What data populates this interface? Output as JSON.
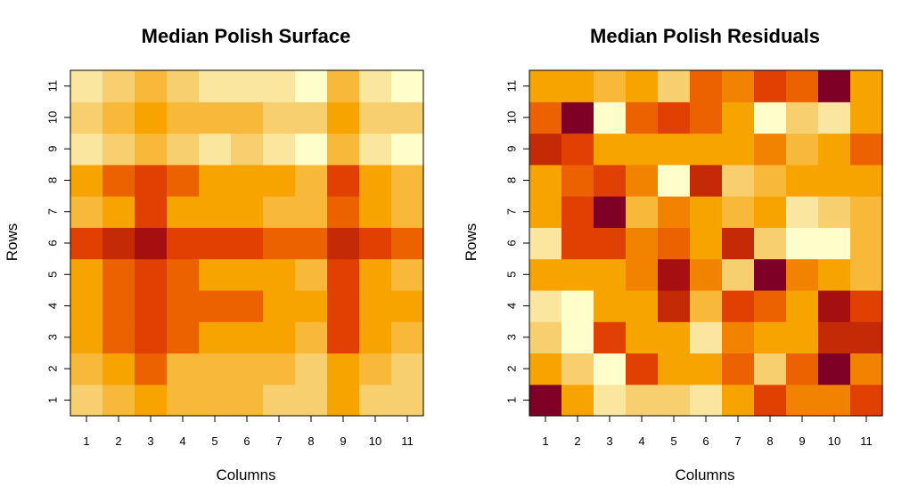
{
  "chart_data": [
    {
      "type": "heatmap",
      "title": "Median Polish Surface",
      "xlabel": "Columns",
      "ylabel": "Rows",
      "x_categories": [
        "1",
        "2",
        "3",
        "4",
        "5",
        "6",
        "7",
        "8",
        "9",
        "10",
        "11"
      ],
      "y_categories": [
        "1",
        "2",
        "3",
        "4",
        "5",
        "6",
        "7",
        "8",
        "9",
        "10",
        "11"
      ],
      "value_range": [
        1,
        10
      ],
      "palette": [
        "#7F0026",
        "#A50F0F",
        "#C52A06",
        "#E04102",
        "#EC6100",
        "#F28300",
        "#F7A300",
        "#F8B93A",
        "#F8CF6F",
        "#FAE69F",
        "#FFFFCC"
      ],
      "values": [
        [
          8,
          7,
          6,
          7,
          7,
          7,
          8,
          8,
          6,
          8,
          8
        ],
        [
          7,
          6,
          5,
          7,
          7,
          7,
          7,
          8,
          6,
          7,
          8
        ],
        [
          6,
          5,
          4,
          5,
          6,
          6,
          6,
          7,
          4,
          6,
          7
        ],
        [
          6,
          5,
          4,
          5,
          5,
          5,
          6,
          6,
          4,
          6,
          6
        ],
        [
          6,
          5,
          4,
          5,
          6,
          6,
          6,
          7,
          4,
          6,
          7
        ],
        [
          4,
          3,
          2,
          4,
          4,
          4,
          5,
          5,
          3,
          4,
          5
        ],
        [
          7,
          6,
          4,
          6,
          6,
          6,
          7,
          7,
          5,
          6,
          7
        ],
        [
          6,
          5,
          4,
          5,
          6,
          6,
          6,
          7,
          4,
          6,
          7
        ],
        [
          9,
          8,
          7,
          8,
          9,
          8,
          9,
          10,
          7,
          9,
          10
        ],
        [
          8,
          7,
          6,
          7,
          7,
          7,
          8,
          8,
          6,
          8,
          8
        ],
        [
          9,
          8,
          7,
          8,
          9,
          9,
          9,
          10,
          7,
          9,
          10
        ]
      ]
    },
    {
      "type": "heatmap",
      "title": "Median Polish Residuals",
      "xlabel": "Columns",
      "ylabel": "Rows",
      "x_categories": [
        "1",
        "2",
        "3",
        "4",
        "5",
        "6",
        "7",
        "8",
        "9",
        "10",
        "11"
      ],
      "y_categories": [
        "1",
        "2",
        "3",
        "4",
        "5",
        "6",
        "7",
        "8",
        "9",
        "10",
        "11"
      ],
      "value_range": [
        0,
        10
      ],
      "palette": [
        "#7F0026",
        "#A50F0F",
        "#C52A06",
        "#E04102",
        "#EC6100",
        "#F28300",
        "#F7A300",
        "#F8B93A",
        "#F8CF6F",
        "#FAE69F",
        "#FFFFCC"
      ],
      "values": [
        [
          0,
          6,
          9,
          8,
          8,
          9,
          6,
          3,
          5,
          5,
          3
        ],
        [
          6,
          8,
          10,
          3,
          6,
          6,
          4,
          8,
          4,
          0,
          5
        ],
        [
          8,
          10,
          3,
          6,
          6,
          9,
          5,
          6,
          6,
          2,
          2
        ],
        [
          9,
          10,
          6,
          6,
          2,
          7,
          3,
          4,
          6,
          1,
          3
        ],
        [
          6,
          6,
          6,
          5,
          1,
          5,
          8,
          0,
          5,
          6,
          7
        ],
        [
          9,
          3,
          3,
          5,
          4,
          6,
          2,
          8,
          10,
          10,
          7
        ],
        [
          6,
          3,
          0,
          7,
          5,
          6,
          7,
          6,
          9,
          8,
          7
        ],
        [
          6,
          4,
          3,
          5,
          10,
          2,
          8,
          7,
          6,
          6,
          6
        ],
        [
          2,
          3,
          6,
          6,
          6,
          6,
          6,
          5,
          7,
          6,
          4
        ],
        [
          4,
          0,
          10,
          4,
          3,
          4,
          6,
          10,
          8,
          9,
          6
        ],
        [
          6,
          6,
          7,
          6,
          8,
          4,
          5,
          3,
          4,
          0,
          6
        ]
      ]
    }
  ]
}
